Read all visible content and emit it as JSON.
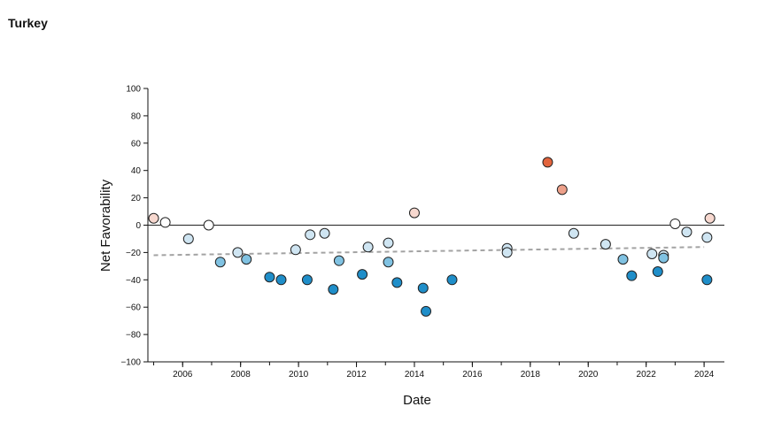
{
  "title": "Turkey",
  "chart_data": {
    "type": "scatter",
    "title": "Turkey",
    "xlabel": "Date",
    "ylabel": "Net Favorability",
    "xlim": [
      2004.8,
      2024.7
    ],
    "ylim": [
      -100,
      100
    ],
    "x_ticks": [
      "2006",
      "2008",
      "2010",
      "2012",
      "2014",
      "2016",
      "2018",
      "2020",
      "2022",
      "2024"
    ],
    "y_ticks": [
      "100",
      "80",
      "60",
      "40",
      "20",
      "0",
      "−20",
      "−40",
      "−60",
      "−80",
      "−100"
    ],
    "reference_line_y": 0,
    "trend_line": {
      "start": [
        2005.0,
        -22
      ],
      "end": [
        2024.0,
        -16
      ]
    },
    "grid": false,
    "legend": "none",
    "colors": {
      "pos_strong": "#e2643d",
      "pos_mid": "#eda08a",
      "pos_light": "#f7d8cf",
      "neutral": "#ffffff",
      "neg_light": "#cfe5f2",
      "neg_mid": "#80c2e2",
      "neg_strong": "#1f8ec9",
      "trend": "#a3a3a3",
      "axis": "#111111"
    },
    "points": [
      {
        "x": 2005.0,
        "y": 5
      },
      {
        "x": 2005.4,
        "y": 2
      },
      {
        "x": 2006.2,
        "y": -10
      },
      {
        "x": 2006.9,
        "y": 0
      },
      {
        "x": 2007.3,
        "y": -27
      },
      {
        "x": 2007.9,
        "y": -20
      },
      {
        "x": 2008.2,
        "y": -25
      },
      {
        "x": 2009.0,
        "y": -38
      },
      {
        "x": 2009.4,
        "y": -40
      },
      {
        "x": 2009.9,
        "y": -18
      },
      {
        "x": 2010.3,
        "y": -40
      },
      {
        "x": 2010.4,
        "y": -7
      },
      {
        "x": 2010.9,
        "y": -6
      },
      {
        "x": 2011.2,
        "y": -47
      },
      {
        "x": 2011.4,
        "y": -26
      },
      {
        "x": 2012.2,
        "y": -36
      },
      {
        "x": 2012.4,
        "y": -16
      },
      {
        "x": 2013.1,
        "y": -13
      },
      {
        "x": 2013.1,
        "y": -27
      },
      {
        "x": 2013.4,
        "y": -42
      },
      {
        "x": 2014.0,
        "y": 9
      },
      {
        "x": 2014.3,
        "y": -46
      },
      {
        "x": 2014.4,
        "y": -63
      },
      {
        "x": 2015.3,
        "y": -40
      },
      {
        "x": 2017.2,
        "y": -17
      },
      {
        "x": 2017.2,
        "y": -20
      },
      {
        "x": 2018.6,
        "y": 46
      },
      {
        "x": 2019.1,
        "y": 26
      },
      {
        "x": 2019.5,
        "y": -6
      },
      {
        "x": 2020.6,
        "y": -14
      },
      {
        "x": 2021.2,
        "y": -25
      },
      {
        "x": 2021.5,
        "y": -37
      },
      {
        "x": 2022.2,
        "y": -21
      },
      {
        "x": 2022.4,
        "y": -34
      },
      {
        "x": 2022.6,
        "y": -22
      },
      {
        "x": 2022.6,
        "y": -24
      },
      {
        "x": 2023.0,
        "y": 1
      },
      {
        "x": 2023.4,
        "y": -5
      },
      {
        "x": 2024.1,
        "y": -9
      },
      {
        "x": 2024.1,
        "y": -40
      },
      {
        "x": 2024.2,
        "y": 5
      }
    ]
  }
}
